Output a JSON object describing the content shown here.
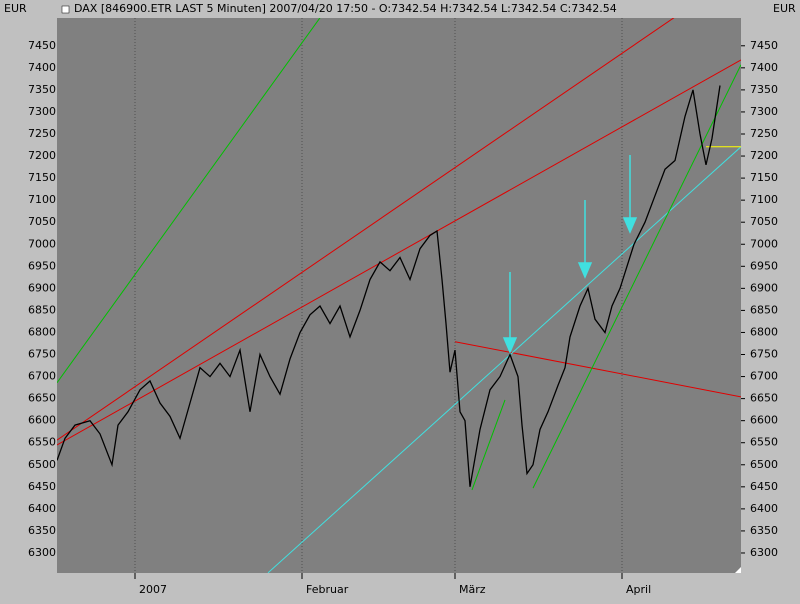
{
  "chart_data": {
    "type": "line",
    "title": "DAX [846900.ETR LAST 5 Minuten] 2007/04/20 17:50 - O:7342.54 H:7342.54 L:7342.54 C:7342.54",
    "currency": "EUR",
    "x": [
      0,
      8,
      18,
      33,
      43,
      55,
      61,
      71,
      83,
      93,
      103,
      113,
      123,
      133,
      143,
      153,
      163,
      173,
      183,
      193,
      203,
      213,
      223,
      233,
      243,
      253,
      263,
      273,
      283,
      293,
      303,
      313,
      323,
      333,
      343,
      353,
      363,
      373,
      380,
      385,
      389,
      393,
      398,
      403,
      408,
      413,
      423,
      433,
      443,
      453,
      461,
      465,
      470,
      476,
      483,
      491,
      501,
      508,
      513,
      523,
      531,
      538,
      548,
      555,
      563,
      570,
      577,
      588,
      598,
      608,
      618,
      628,
      636,
      643,
      649,
      655,
      663
    ],
    "values": [
      6510,
      6560,
      6590,
      6600,
      6570,
      6500,
      6590,
      6620,
      6670,
      6690,
      6640,
      6610,
      6560,
      6640,
      6720,
      6700,
      6730,
      6700,
      6760,
      6620,
      6750,
      6700,
      6660,
      6740,
      6800,
      6840,
      6860,
      6820,
      6860,
      6790,
      6850,
      6920,
      6960,
      6940,
      6970,
      6920,
      6990,
      7020,
      7030,
      6920,
      6820,
      6710,
      6760,
      6620,
      6600,
      6450,
      6580,
      6670,
      6700,
      6750,
      6700,
      6590,
      6480,
      6500,
      6580,
      6620,
      6680,
      6720,
      6790,
      6860,
      6900,
      6830,
      6800,
      6860,
      6900,
      6950,
      7000,
      7050,
      7110,
      7170,
      7190,
      7290,
      7350,
      7250,
      7180,
      7240,
      7360
    ],
    "color": "#000000",
    "trendlines": [
      {
        "color": "#00c000",
        "x": [
          0,
          650
        ],
        "y": [
          6686,
          8731
        ]
      },
      {
        "color": "#e00000",
        "x": [
          0,
          643
        ],
        "y": [
          6556,
          7554
        ]
      },
      {
        "color": "#e00000",
        "x": [
          0,
          684
        ],
        "y": [
          6545,
          7418
        ]
      },
      {
        "color": "#e00000",
        "x": [
          398,
          684
        ],
        "y": [
          6779,
          6654
        ]
      },
      {
        "color": "#40e0e0",
        "x": [
          211,
          684
        ],
        "y": [
          6255,
          7221
        ]
      },
      {
        "color": "#00c000",
        "x": [
          415,
          448
        ],
        "y": [
          6443,
          6647
        ]
      },
      {
        "color": "#00c000",
        "x": [
          476,
          684
        ],
        "y": [
          6447,
          7407
        ]
      },
      {
        "color": "#ffff00",
        "x": [
          649,
          684
        ],
        "y": [
          7221,
          7221
        ]
      }
    ],
    "xlim": [
      0,
      684
    ],
    "xticks": [
      {
        "value": 78,
        "label": "2007"
      },
      {
        "value": 245,
        "label": "Februar"
      },
      {
        "value": 398,
        "label": "März"
      },
      {
        "value": 565,
        "label": "April"
      }
    ],
    "ylim": [
      6254.6,
      7513
    ],
    "yticks": [
      6300,
      6350,
      6400,
      6450,
      6500,
      6550,
      6600,
      6650,
      6700,
      6750,
      6800,
      6850,
      6900,
      6950,
      7000,
      7050,
      7100,
      7150,
      7200,
      7250,
      7300,
      7350,
      7400,
      7450
    ],
    "grid": true
  }
}
